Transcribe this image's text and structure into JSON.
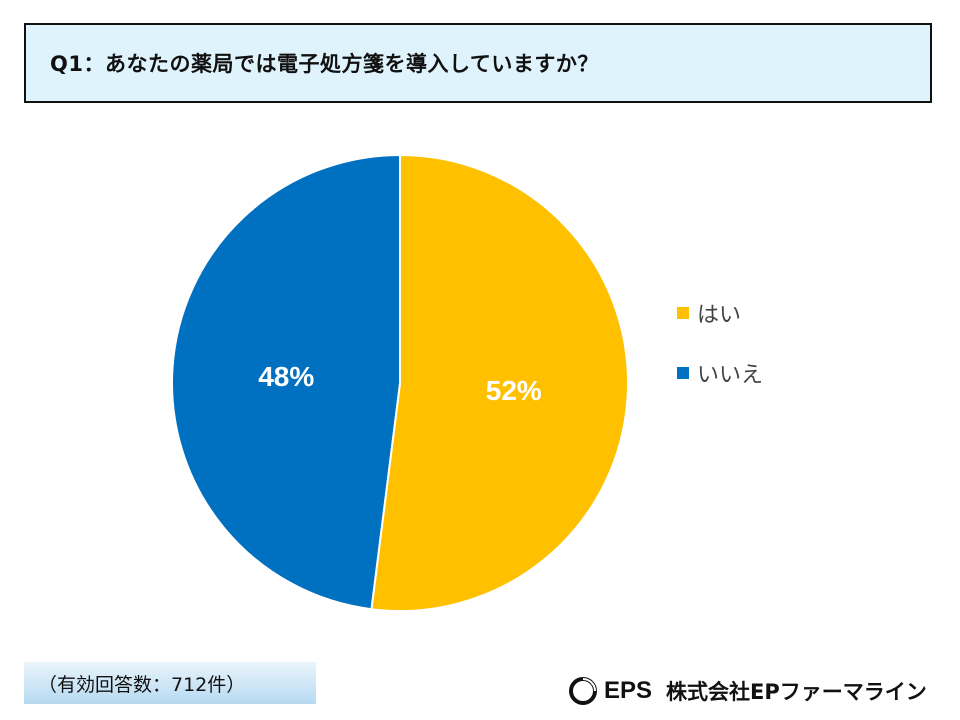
{
  "title": "Q1：あなたの薬局では電子処方箋を導入していますか？",
  "chart_data": {
    "type": "pie",
    "categories": [
      "はい",
      "いいえ"
    ],
    "values": [
      52,
      48
    ],
    "data_labels": [
      "52%",
      "48%"
    ],
    "colors": [
      "#ffc000",
      "#0070c0"
    ],
    "legend_position": "right",
    "title": ""
  },
  "footnote": "（有効回答数：712件）",
  "brand": {
    "mark": "EPS",
    "name": "株式会社EPファーマライン"
  }
}
